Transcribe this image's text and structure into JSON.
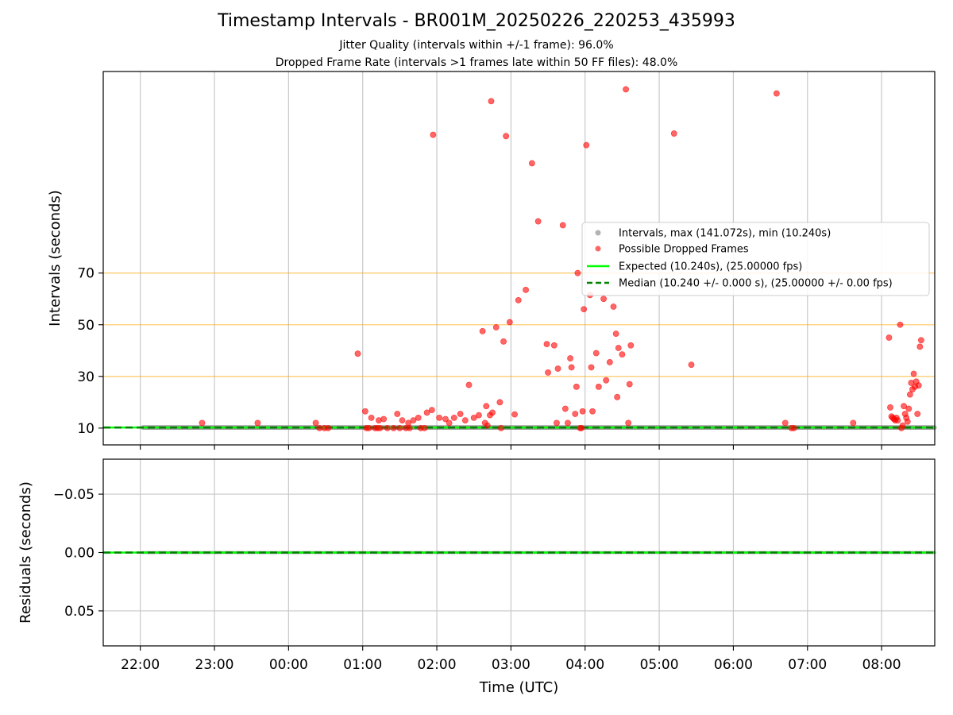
{
  "title": "Timestamp Intervals - BR001M_20250226_220253_435993",
  "subtitle_1": "Jitter Quality (intervals within +/-1 frame): 96.0%",
  "subtitle_2": "Dropped Frame Rate (intervals >1 frames late within 50 FF files): 48.0%",
  "colors": {
    "expected": "#00ff00",
    "median": "#008000",
    "dropped": "#ff0000",
    "intervals": "#808080",
    "guide": "#ffa500",
    "grid": "#c8c8c8"
  },
  "chart_data": [
    {
      "type": "scatter",
      "panel": "top",
      "ylabel": "Intervals (seconds)",
      "xlabel": "",
      "x_ticks": [
        "22:00",
        "23:00",
        "00:00",
        "01:00",
        "02:00",
        "03:00",
        "04:00",
        "05:00",
        "06:00",
        "07:00",
        "08:00"
      ],
      "xlim": [
        "21:30",
        "08:43"
      ],
      "ylim": [
        3.5,
        148
      ],
      "y_ticks": [
        10,
        30,
        50,
        70
      ],
      "guide_lines": [
        30,
        50,
        70
      ],
      "grid": "vertical",
      "legend_position": "center-right",
      "legend": [
        "Intervals, max (141.072s), min (10.240s)",
        "Possible Dropped Frames",
        "Expected (10.240s), (25.00000 fps)",
        "Median (10.240 +/- 0.000 s), (25.00000 +/- 0.00 fps)"
      ],
      "series": [
        {
          "name": "Intervals, max (141.072s), min (10.240s)",
          "style": "gray dots (dense band at baseline)",
          "x_range": [
            "22:02",
            "08:43"
          ],
          "y": 10.24
        },
        {
          "name": "Possible Dropped Frames",
          "points": [
            [
              "22:50",
              12
            ],
            [
              "23:35",
              12
            ],
            [
              "00:22",
              12
            ],
            [
              "00:25",
              10
            ],
            [
              "00:29",
              10
            ],
            [
              "00:32",
              10
            ],
            [
              "00:56",
              38.8
            ],
            [
              "01:02",
              16.5
            ],
            [
              "01:03",
              10
            ],
            [
              "01:05",
              10
            ],
            [
              "01:07",
              14
            ],
            [
              "01:10",
              10
            ],
            [
              "01:12",
              10
            ],
            [
              "01:13",
              13
            ],
            [
              "01:14",
              10
            ],
            [
              "01:17",
              13.5
            ],
            [
              "01:20",
              10
            ],
            [
              "01:25",
              10
            ],
            [
              "01:28",
              15.5
            ],
            [
              "01:30",
              10
            ],
            [
              "01:32",
              13
            ],
            [
              "01:35",
              10
            ],
            [
              "01:37",
              12
            ],
            [
              "01:38",
              10
            ],
            [
              "01:41",
              13
            ],
            [
              "01:45",
              14
            ],
            [
              "01:47",
              10
            ],
            [
              "01:50",
              10
            ],
            [
              "01:52",
              16
            ],
            [
              "01:56",
              17
            ],
            [
              "01:57",
              123.5
            ],
            [
              "02:02",
              14
            ],
            [
              "02:07",
              13.5
            ],
            [
              "02:10",
              12
            ],
            [
              "02:14",
              14
            ],
            [
              "02:19",
              15.5
            ],
            [
              "02:23",
              13
            ],
            [
              "02:26",
              26.7
            ],
            [
              "02:30",
              14
            ],
            [
              "02:34",
              15
            ],
            [
              "02:37",
              47.5
            ],
            [
              "02:39",
              12
            ],
            [
              "02:40",
              18.5
            ],
            [
              "02:41",
              11
            ],
            [
              "02:43",
              15
            ],
            [
              "02:44",
              136.5
            ],
            [
              "02:45",
              16
            ],
            [
              "02:48",
              49
            ],
            [
              "02:51",
              20
            ],
            [
              "02:52",
              10
            ],
            [
              "02:54",
              43.5
            ],
            [
              "02:56",
              123
            ],
            [
              "02:59",
              51
            ],
            [
              "03:03",
              15.3
            ],
            [
              "03:06",
              59.5
            ],
            [
              "03:12",
              63.5
            ],
            [
              "03:17",
              112.5
            ],
            [
              "03:22",
              90
            ],
            [
              "03:29",
              42.5
            ],
            [
              "03:30",
              31.5
            ],
            [
              "03:35",
              42
            ],
            [
              "03:37",
              12
            ],
            [
              "03:38",
              33
            ],
            [
              "03:42",
              88.5
            ],
            [
              "03:44",
              17.5
            ],
            [
              "03:46",
              12
            ],
            [
              "03:48",
              37
            ],
            [
              "03:49",
              33.5
            ],
            [
              "03:52",
              15.5
            ],
            [
              "03:53",
              26
            ],
            [
              "03:54",
              70
            ],
            [
              "03:56",
              10
            ],
            [
              "03:57",
              10
            ],
            [
              "03:58",
              16.5
            ],
            [
              "03:59",
              56
            ],
            [
              "04:01",
              119.5
            ],
            [
              "04:04",
              61.5
            ],
            [
              "04:05",
              33.5
            ],
            [
              "04:06",
              16.5
            ],
            [
              "04:09",
              39
            ],
            [
              "04:11",
              26
            ],
            [
              "04:15",
              60
            ],
            [
              "04:17",
              28.5
            ],
            [
              "04:20",
              35.5
            ],
            [
              "04:23",
              57
            ],
            [
              "04:25",
              46.5
            ],
            [
              "04:26",
              22
            ],
            [
              "04:27",
              41
            ],
            [
              "04:30",
              38.5
            ],
            [
              "04:33",
              141.1
            ],
            [
              "04:35",
              12
            ],
            [
              "04:36",
              27
            ],
            [
              "04:37",
              42
            ],
            [
              "05:12",
              124
            ],
            [
              "05:26",
              34.5
            ],
            [
              "06:35",
              139.5
            ],
            [
              "06:42",
              12
            ],
            [
              "06:47",
              10
            ],
            [
              "06:49",
              10
            ],
            [
              "07:37",
              12
            ],
            [
              "08:06",
              45
            ],
            [
              "08:07",
              18
            ],
            [
              "08:08",
              14.5
            ],
            [
              "08:09",
              14
            ],
            [
              "08:10",
              13.5
            ],
            [
              "08:11",
              13
            ],
            [
              "08:12",
              14
            ],
            [
              "08:13",
              13
            ],
            [
              "08:15",
              50
            ],
            [
              "08:16",
              10
            ],
            [
              "08:17",
              11
            ],
            [
              "08:18",
              18.5
            ],
            [
              "08:19",
              15.5
            ],
            [
              "08:20",
              14
            ],
            [
              "08:21",
              12.5
            ],
            [
              "08:22",
              17.5
            ],
            [
              "08:23",
              23
            ],
            [
              "08:24",
              27.5
            ],
            [
              "08:25",
              25
            ],
            [
              "08:26",
              31
            ],
            [
              "08:27",
              26
            ],
            [
              "08:28",
              28
            ],
            [
              "08:29",
              15.5
            ],
            [
              "08:30",
              26.5
            ],
            [
              "08:31",
              41.5
            ],
            [
              "08:32",
              44
            ]
          ]
        },
        {
          "name": "Expected (10.240s), (25.00000 fps)",
          "style": "solid line",
          "y": 10.24
        },
        {
          "name": "Median (10.240 +/- 0.000 s), (25.00000 +/- 0.00 fps)",
          "style": "dashed line",
          "y": 10.24
        }
      ]
    },
    {
      "type": "line",
      "panel": "bottom",
      "ylabel": "Residuals (seconds)",
      "xlabel": "Time (UTC)",
      "x_ticks": [
        "22:00",
        "23:00",
        "00:00",
        "01:00",
        "02:00",
        "03:00",
        "04:00",
        "05:00",
        "06:00",
        "07:00",
        "08:00"
      ],
      "xlim": [
        "21:30",
        "08:43"
      ],
      "ylim": [
        -0.08,
        0.08
      ],
      "y_ticks": [
        "−0.05",
        "0.00",
        "0.05"
      ],
      "grid": "both",
      "series": [
        {
          "style": "green dashed line with residual points",
          "y": 0.0
        }
      ]
    }
  ]
}
